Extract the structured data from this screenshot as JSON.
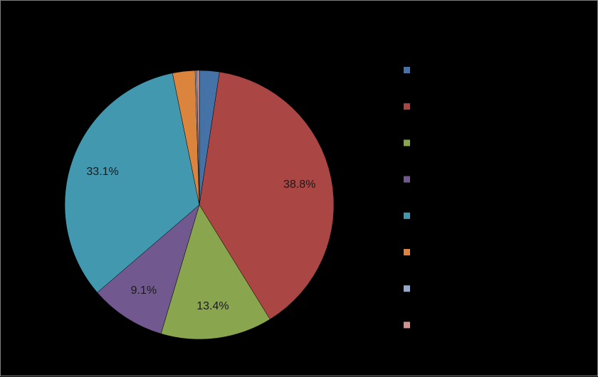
{
  "chart_data": {
    "type": "pie",
    "title": "",
    "slices": [
      {
        "name": "",
        "value": 2.4,
        "color": "#4572A7",
        "label": ""
      },
      {
        "name": "",
        "value": 38.8,
        "color": "#AA4643",
        "label": "38.8%"
      },
      {
        "name": "",
        "value": 13.4,
        "color": "#89A54E",
        "label": "13.4%"
      },
      {
        "name": "",
        "value": 9.1,
        "color": "#71588F",
        "label": "9.1%"
      },
      {
        "name": "",
        "value": 33.1,
        "color": "#4198AF",
        "label": "33.1%"
      },
      {
        "name": "",
        "value": 2.7,
        "color": "#DB843D",
        "label": ""
      },
      {
        "name": "",
        "value": 0.2,
        "color": "#93A9CF",
        "label": ""
      },
      {
        "name": "",
        "value": 0.3,
        "color": "#D19392",
        "label": ""
      }
    ],
    "start_angle_deg": 0,
    "direction": "clockwise",
    "legend": "right",
    "data_labels": "inside"
  }
}
